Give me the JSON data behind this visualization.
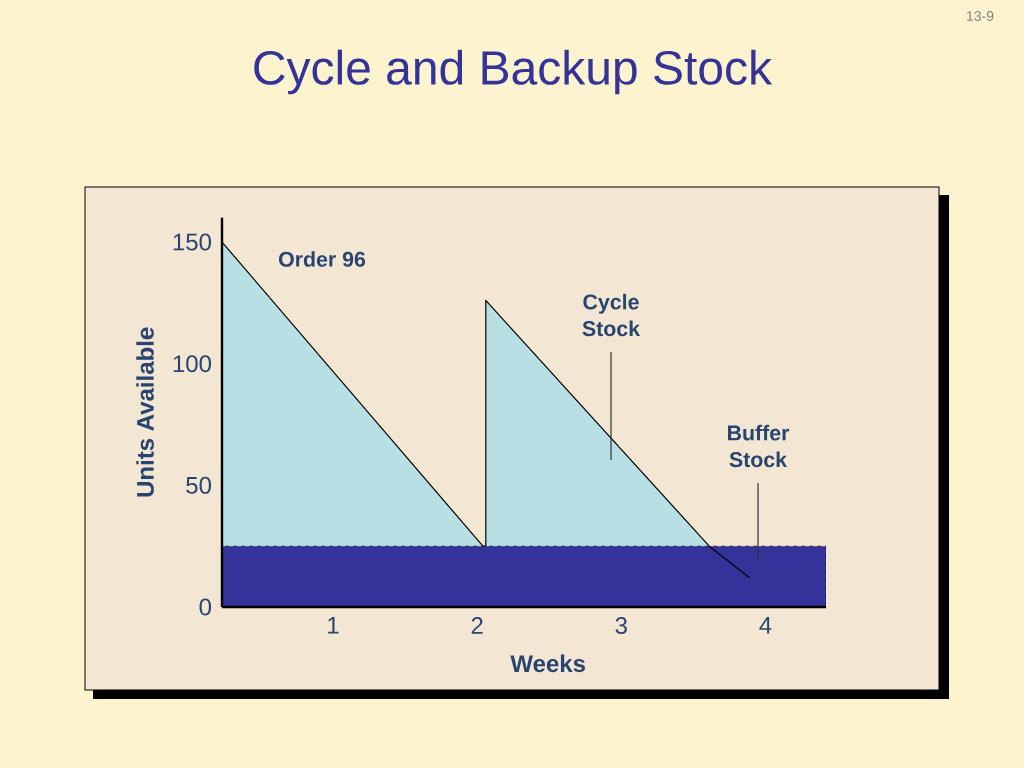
{
  "chart_data": {
    "type": "area",
    "title": "Cycle and Backup Stock",
    "xlabel": "Weeks",
    "ylabel": "Units Available",
    "series": [
      {
        "color": "#b8dfe3",
        "x": [
          0.23,
          2.04,
          2.06,
          2.06,
          3.61
        ],
        "values": [
          150,
          25,
          25,
          126,
          25
        ]
      },
      {
        "type": "line",
        "color": "#000000",
        "x": [
          3.61,
          3.89
        ],
        "values": [
          25,
          12
        ]
      }
    ],
    "xlim": [
      0.23,
      4.42
    ],
    "ylim": [
      0,
      160
    ],
    "xticks": [
      1,
      2,
      3,
      4
    ],
    "yticks": [
      0,
      50,
      100,
      150
    ],
    "bands": [
      {
        "axis": "y",
        "from": 0,
        "to": 25,
        "color": "#333399"
      }
    ],
    "annotations": [
      "13-9",
      "Order 96",
      "Cycle Stock",
      "Buffer Stock"
    ]
  }
}
